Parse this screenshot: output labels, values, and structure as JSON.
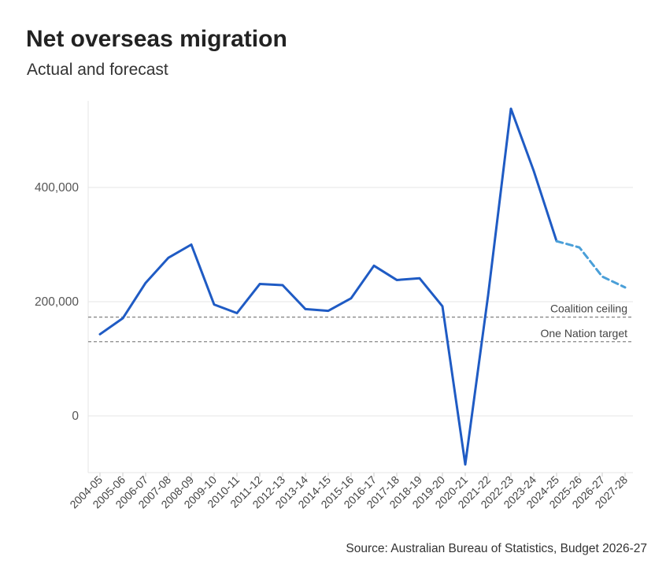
{
  "title": "Net overseas migration",
  "subtitle": "Actual and forecast",
  "source": "Source: Australian Bureau of Statistics, Budget 2026-27",
  "colors": {
    "actual": "#1f5bc4",
    "forecast": "#4a9fd8",
    "reference": "#888888",
    "grid": "#e6e6e6"
  },
  "chart_data": {
    "type": "line",
    "title": "Net overseas migration",
    "subtitle": "Actual and forecast",
    "xlabel": "",
    "ylabel": "",
    "ylim": [
      -87000,
      540000
    ],
    "yticks": [
      0,
      200000,
      400000
    ],
    "ytick_labels": [
      "0",
      "200,000",
      "400,000"
    ],
    "grid": "horizontal",
    "categories": [
      "2004-05",
      "2005-06",
      "2006-07",
      "2007-08",
      "2008-09",
      "2009-10",
      "2010-11",
      "2011-12",
      "2012-13",
      "2013-14",
      "2014-15",
      "2015-16",
      "2016-17",
      "2017-18",
      "2018-19",
      "2019-20",
      "2020-21",
      "2021-22",
      "2022-23",
      "2023-24",
      "2024-25",
      "2025-26",
      "2026-27",
      "2027-28"
    ],
    "series": [
      {
        "style": "solid",
        "color": "#1f5bc4",
        "values": [
          143000,
          171000,
          233000,
          277000,
          300000,
          195000,
          180000,
          231000,
          229000,
          187000,
          184000,
          206000,
          263000,
          238000,
          241000,
          192000,
          -85000,
          211000,
          538000,
          429000,
          306000,
          null,
          null,
          null
        ]
      },
      {
        "style": "dashed",
        "color": "#4a9fd8",
        "values": [
          null,
          null,
          null,
          null,
          null,
          null,
          null,
          null,
          null,
          null,
          null,
          null,
          null,
          null,
          null,
          null,
          null,
          null,
          null,
          null,
          306000,
          295000,
          244000,
          225000
        ]
      }
    ],
    "reference_lines": [
      {
        "label": "Coalition ceiling",
        "value": 173000
      },
      {
        "label": "One Nation target",
        "value": 130000
      }
    ]
  }
}
